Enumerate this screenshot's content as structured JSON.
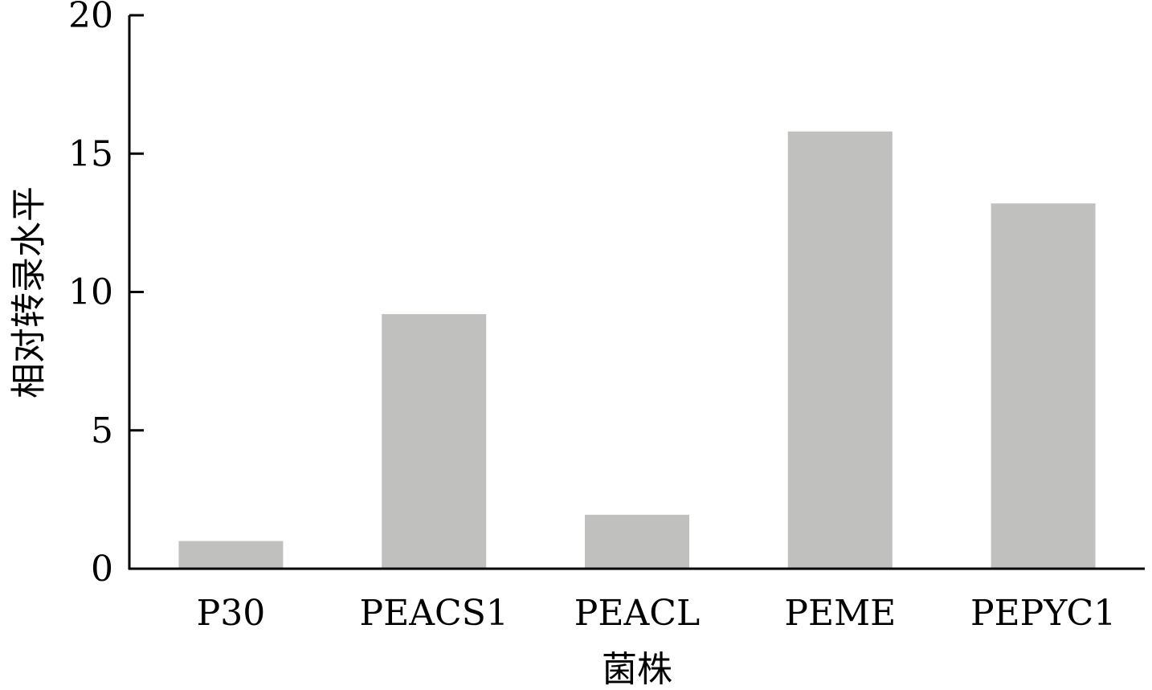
{
  "chart_data": {
    "type": "bar",
    "title": "",
    "xlabel": "菌株",
    "ylabel": "相对转录水平",
    "categories": [
      "P30",
      "PEACS1",
      "PEACL",
      "PEME",
      "PEPYC1"
    ],
    "values": [
      1.0,
      9.2,
      1.95,
      15.8,
      13.2
    ],
    "ylim": [
      0,
      20
    ],
    "yticks": [
      0,
      5,
      10,
      15,
      20
    ],
    "grid": false,
    "legend": "none",
    "bar_color": "#c0c0bf",
    "axis_color": "#000000"
  }
}
